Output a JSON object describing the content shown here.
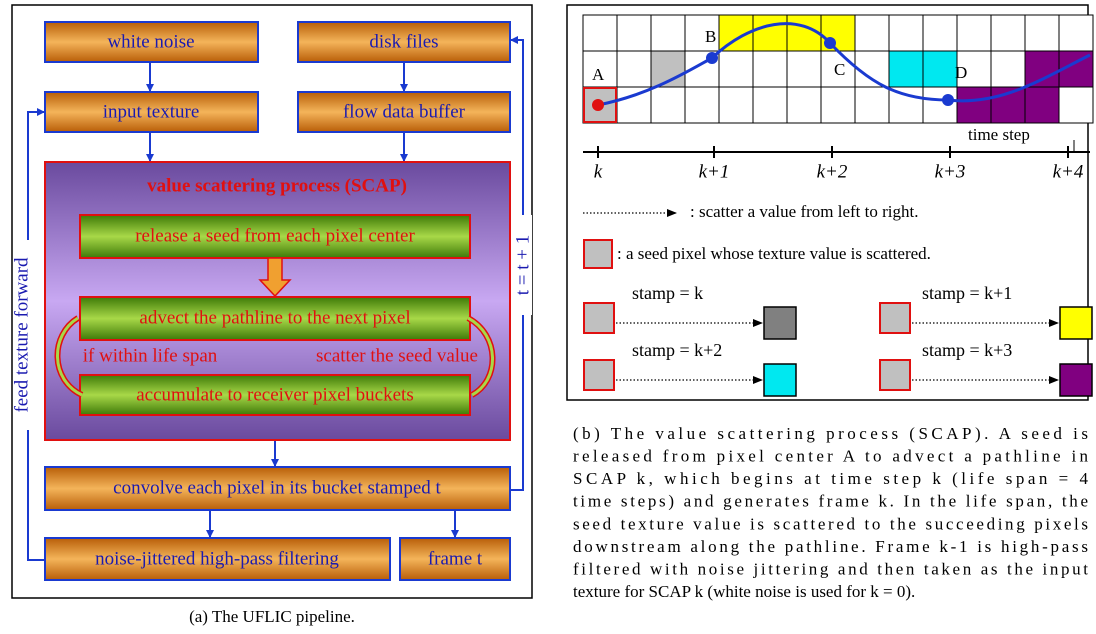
{
  "panel_a": {
    "nodes": [
      "white noise",
      "disk files",
      "input texture",
      "flow data buffer",
      "convolve each pixel in its bucket stamped t",
      "noise-jittered high-pass filtering",
      "frame t"
    ],
    "scap_title": "value scattering process (SCAP)",
    "scap_steps": [
      "release a seed from each pixel center",
      "advect the pathline to the next pixel",
      "accumulate to receiver pixel buckets"
    ],
    "loop_left": "if within life span",
    "loop_right": "scatter the seed value",
    "feedback_left": "feed texture forward",
    "feedback_right": "t = t + 1",
    "caption": "(a) The UFLIC pipeline."
  },
  "panel_b": {
    "point_labels": [
      "A",
      "B",
      "C",
      "D"
    ],
    "axis_label": "time step",
    "ticks": [
      "k",
      "k+1",
      "k+2",
      "k+3",
      "k+4"
    ],
    "legend_arrow": ": scatter a value from left to right.",
    "legend_seed": ": a seed pixel whose texture value is scattered.",
    "stamps": [
      "stamp = k",
      "stamp = k+1",
      "stamp = k+2",
      "stamp = k+3"
    ],
    "caption_lines": [
      "(b) The value scattering process (SCAP). A seed is",
      "released from pixel center A to advect a pathline in",
      "SCAP k, which begins at time step k (life span = 4",
      "time steps) and generates frame k. In the life span, the",
      "seed texture value is scattered to the succeeding pixels",
      "downstream along the pathline. Frame k-1 is high-pass",
      "filtered with noise jittering and then taken as the input",
      "texture for SCAP k (white noise is used for k = 0)."
    ]
  }
}
